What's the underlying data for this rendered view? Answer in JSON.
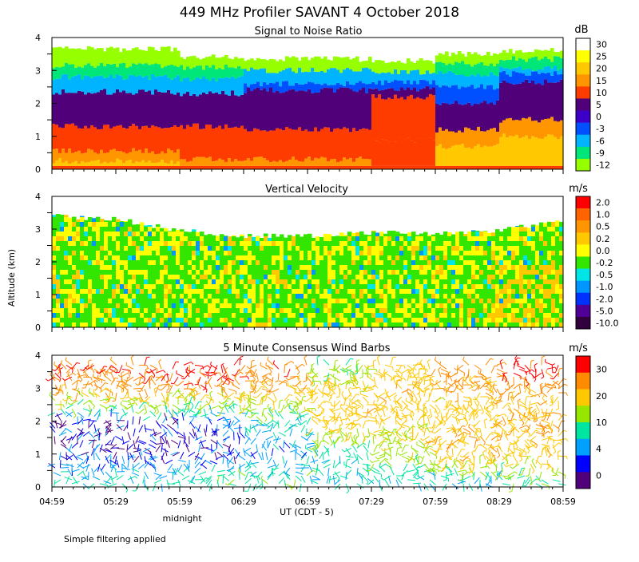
{
  "figure": {
    "title": "449 MHz Profiler SAVANT  4 October 2018",
    "ylabel": "Altitude (km)",
    "xlabel": "UT  (CDT - 5)",
    "x_annotation": "midnight",
    "footnote": "Simple filtering applied"
  },
  "chart_data": [
    {
      "type": "heatmap",
      "title": "Signal to Noise Ratio",
      "unit": "dB",
      "x": [
        "04:59",
        "05:29",
        "05:59",
        "06:29",
        "06:59",
        "07:29",
        "07:59",
        "08:29",
        "08:59"
      ],
      "ylim": [
        0,
        4
      ],
      "yticks": [
        "0",
        "1",
        "2",
        "3",
        "4"
      ],
      "legend": [
        "30",
        "25",
        "20",
        "15",
        "10",
        "5",
        "0",
        "-3",
        "-6",
        "-9",
        "-12"
      ],
      "colors": [
        "#ffffff",
        "#ffff00",
        "#ffc800",
        "#ff9600",
        "#ff3c00",
        "#500078",
        "#3c00c8",
        "#0050ff",
        "#00b4ff",
        "#00e678",
        "#96ff00"
      ],
      "profiles": [
        {
          "time": "04:59",
          "layers": [
            [
              0.1,
              "#ff3c00"
            ],
            [
              0.25,
              "#ffc800"
            ],
            [
              0.55,
              "#ff9600"
            ],
            [
              1.3,
              "#ff3c00"
            ],
            [
              2.35,
              "#500078"
            ],
            [
              2.8,
              "#00b4ff"
            ],
            [
              3.15,
              "#00e678"
            ],
            [
              3.65,
              "#96ff00"
            ]
          ]
        },
        {
          "time": "05:59",
          "layers": [
            [
              0.1,
              "#ff3c00"
            ],
            [
              0.3,
              "#ff9600"
            ],
            [
              1.3,
              "#ff3c00"
            ],
            [
              2.3,
              "#500078"
            ],
            [
              2.75,
              "#00b4ff"
            ],
            [
              3.1,
              "#00e678"
            ],
            [
              3.4,
              "#96ff00"
            ]
          ]
        },
        {
          "time": "06:29",
          "layers": [
            [
              0.1,
              "#ff3c00"
            ],
            [
              0.3,
              "#ff9600"
            ],
            [
              1.2,
              "#ff3c00"
            ],
            [
              2.4,
              "#500078"
            ],
            [
              2.6,
              "#0050ff"
            ],
            [
              3.0,
              "#00b4ff"
            ],
            [
              3.35,
              "#96ff00"
            ]
          ]
        },
        {
          "time": "07:29",
          "layers": [
            [
              0.1,
              "#ff3c00"
            ],
            [
              0.9,
              "#ff3c00"
            ],
            [
              2.2,
              "#ff3c00"
            ],
            [
              2.45,
              "#500078"
            ],
            [
              2.65,
              "#0050ff"
            ],
            [
              2.95,
              "#00b4ff"
            ],
            [
              3.3,
              "#96ff00"
            ]
          ]
        },
        {
          "time": "07:59",
          "layers": [
            [
              0.1,
              "#ff3c00"
            ],
            [
              0.7,
              "#ffc800"
            ],
            [
              1.2,
              "#ff9600"
            ],
            [
              2.0,
              "#500078"
            ],
            [
              2.5,
              "#0050ff"
            ],
            [
              2.9,
              "#00b4ff"
            ],
            [
              3.2,
              "#00e678"
            ],
            [
              3.5,
              "#96ff00"
            ]
          ]
        },
        {
          "time": "08:29",
          "layers": [
            [
              0.1,
              "#ff3c00"
            ],
            [
              1.0,
              "#ffc800"
            ],
            [
              1.5,
              "#ff9600"
            ],
            [
              2.65,
              "#500078"
            ],
            [
              2.9,
              "#0050ff"
            ],
            [
              3.05,
              "#00b4ff"
            ],
            [
              3.35,
              "#00e678"
            ],
            [
              3.6,
              "#96ff00"
            ]
          ]
        },
        {
          "time": "08:59",
          "layers": [
            [
              0.1,
              "#ff3c00"
            ],
            [
              1.1,
              "#ffc800"
            ],
            [
              1.6,
              "#ff9600"
            ],
            [
              2.8,
              "#500078"
            ],
            [
              3.2,
              "#0050ff"
            ],
            [
              3.4,
              "#00e678"
            ],
            [
              3.6,
              "#96ff00"
            ]
          ]
        }
      ]
    },
    {
      "type": "heatmap",
      "title": "Vertical Velocity",
      "unit": "m/s",
      "x": [
        "04:59",
        "05:29",
        "05:59",
        "06:29",
        "06:59",
        "07:29",
        "07:59",
        "08:29",
        "08:59"
      ],
      "ylim": [
        0,
        4
      ],
      "yticks": [
        "0",
        "1",
        "2",
        "3",
        "4"
      ],
      "legend": [
        "2.0",
        "1.0",
        "0.5",
        "0.2",
        "0.0",
        "-0.2",
        "-0.5",
        "-1.0",
        "-2.0",
        "-5.0",
        "-10.0"
      ],
      "colors": [
        "#ff0000",
        "#ff6400",
        "#ff9600",
        "#ffc800",
        "#ffff00",
        "#32e600",
        "#00e6e6",
        "#0096ff",
        "#0032ff",
        "#500096",
        "#32003c"
      ],
      "top_km": [
        3.4,
        3.3,
        2.95,
        2.8,
        2.8,
        2.9,
        2.85,
        2.95,
        3.3
      ]
    },
    {
      "type": "scatter",
      "title": "5 Minute Consensus Wind Barbs",
      "unit": "m/s",
      "x": [
        "04:59",
        "05:29",
        "05:59",
        "06:29",
        "06:59",
        "07:29",
        "07:59",
        "08:29",
        "08:59"
      ],
      "ylim": [
        0,
        4
      ],
      "yticks": [
        "0",
        "1",
        "2",
        "3",
        "4"
      ],
      "legend": [
        "30",
        "20",
        "10",
        "4",
        "0"
      ],
      "colors": [
        "#ff0000",
        "#ff8c00",
        "#ffc800",
        "#96e600",
        "#00e6a0",
        "#00a0ff",
        "#0000ff",
        "#500078"
      ],
      "profiles": [
        {
          "time": "04:59",
          "speeds": [
            [
              0.2,
              8
            ],
            [
              1.0,
              3
            ],
            [
              2.0,
              2
            ],
            [
              2.6,
              14
            ],
            [
              3.0,
              24
            ],
            [
              3.5,
              28
            ]
          ]
        },
        {
          "time": "05:59",
          "speeds": [
            [
              0.2,
              10
            ],
            [
              1.0,
              2
            ],
            [
              2.0,
              4
            ],
            [
              2.6,
              14
            ],
            [
              3.0,
              25
            ],
            [
              3.5,
              30
            ]
          ]
        },
        {
          "time": "06:29",
          "speeds": [
            [
              0.2,
              10
            ],
            [
              1.0,
              4
            ],
            [
              2.0,
              8
            ],
            [
              2.6,
              16
            ],
            [
              3.0,
              22
            ],
            [
              3.5,
              26
            ]
          ]
        },
        {
          "time": "06:59",
          "speeds": [
            [
              0.2,
              8
            ],
            [
              1.0,
              8
            ],
            [
              2.0,
              20
            ],
            [
              2.6,
              20
            ],
            [
              3.0,
              18
            ],
            [
              3.5,
              12
            ]
          ]
        },
        {
          "time": "07:29",
          "speeds": [
            [
              0.2,
              7
            ],
            [
              1.0,
              14
            ],
            [
              2.0,
              18
            ],
            [
              2.6,
              20
            ],
            [
              3.0,
              20
            ],
            [
              3.5,
              18
            ]
          ]
        },
        {
          "time": "07:59",
          "speeds": [
            [
              0.2,
              6
            ],
            [
              1.0,
              22
            ],
            [
              2.0,
              20
            ],
            [
              2.6,
              18
            ],
            [
              3.0,
              22
            ],
            [
              3.5,
              25
            ]
          ]
        },
        {
          "time": "08:29",
          "speeds": [
            [
              0.2,
              10
            ],
            [
              1.0,
              20
            ],
            [
              2.0,
              22
            ],
            [
              2.6,
              20
            ],
            [
              3.0,
              26
            ],
            [
              3.5,
              30
            ]
          ]
        },
        {
          "time": "08:59",
          "speeds": [
            [
              0.2,
              12
            ],
            [
              1.0,
              22
            ],
            [
              2.0,
              18
            ],
            [
              2.6,
              18
            ],
            [
              3.0,
              26
            ],
            [
              3.5,
              30
            ]
          ]
        }
      ]
    }
  ]
}
